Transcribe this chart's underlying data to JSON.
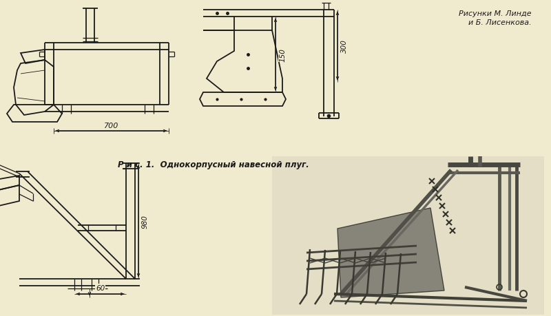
{
  "background_color": "#f0ebcf",
  "title_text": "Р и с. 1.  Однокорпусный навесной плуг.",
  "attribution_line1": "Рисунки М. Линде",
  "attribution_line2": "и Б. Лисенкова.",
  "dim_700": "700",
  "dim_300": "300",
  "dim_150": "150",
  "dim_980": "980",
  "dim_60": "60",
  "line_color": "#1a1a1a",
  "dim_color": "#1a1a1a",
  "text_color": "#1a1a1a",
  "photo_bg": "#b8b0a0"
}
